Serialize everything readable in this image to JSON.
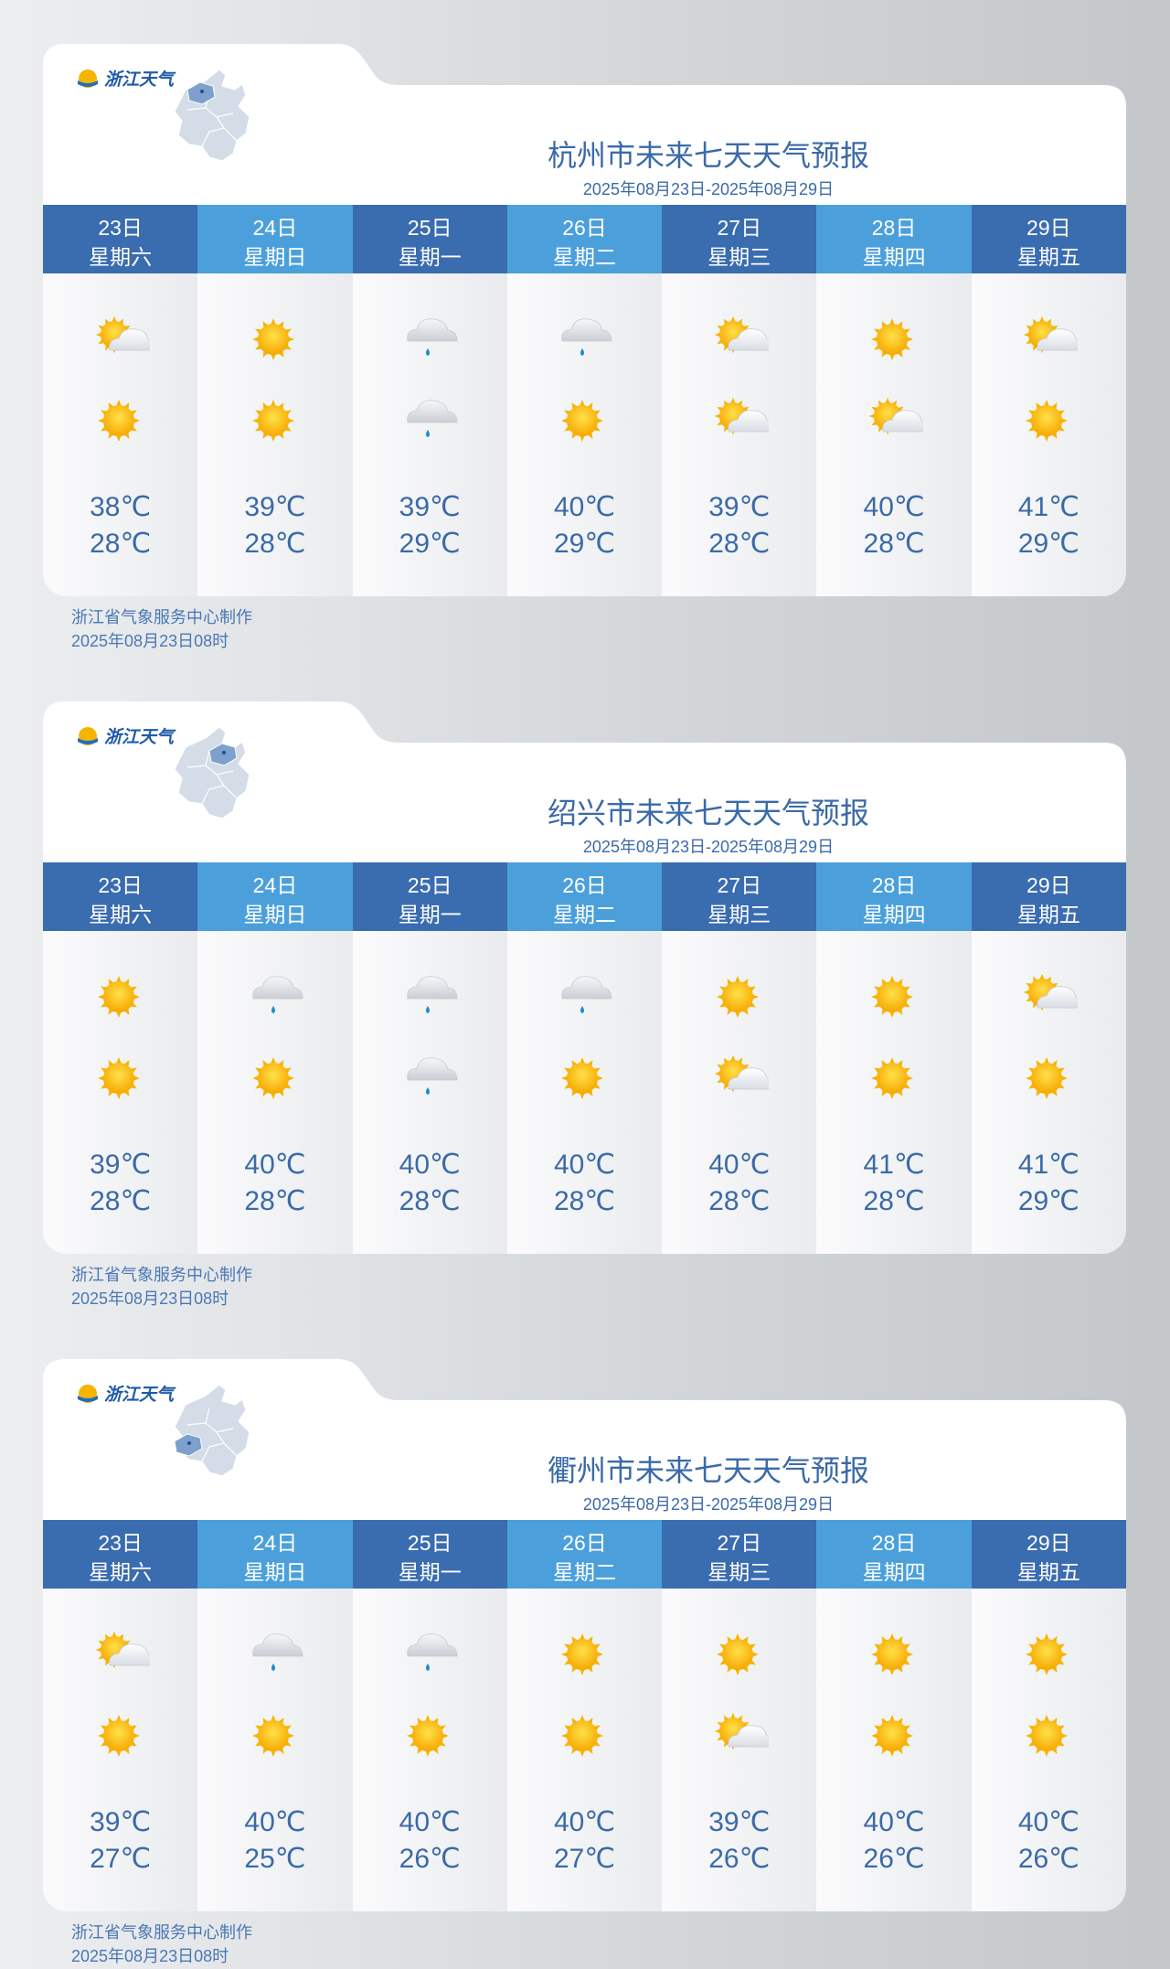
{
  "logo": "浙江天气",
  "panels": [
    {
      "title": "杭州市未来七天天气预报",
      "date_range": "2025年08月23日-2025年08月29日",
      "days": [
        {
          "date": "23日",
          "weekday": "星期六",
          "high": "38℃",
          "low": "28℃"
        },
        {
          "date": "24日",
          "weekday": "星期日",
          "high": "39℃",
          "low": "28℃"
        },
        {
          "date": "25日",
          "weekday": "星期一",
          "high": "39℃",
          "low": "29℃"
        },
        {
          "date": "26日",
          "weekday": "星期二",
          "high": "40℃",
          "low": "29℃"
        },
        {
          "date": "27日",
          "weekday": "星期三",
          "high": "39℃",
          "low": "28℃"
        },
        {
          "date": "28日",
          "weekday": "星期四",
          "high": "40℃",
          "low": "28℃"
        },
        {
          "date": "29日",
          "weekday": "星期五",
          "high": "41℃",
          "low": "29℃"
        }
      ],
      "footer": [
        "浙江省气象服务中心制作",
        "2025年08月23日08时"
      ]
    },
    {
      "title": "绍兴市未来七天天气预报",
      "date_range": "2025年08月23日-2025年08月29日",
      "days": [
        {
          "date": "23日",
          "weekday": "星期六",
          "high": "39℃",
          "low": "28℃"
        },
        {
          "date": "24日",
          "weekday": "星期日",
          "high": "40℃",
          "low": "28℃"
        },
        {
          "date": "25日",
          "weekday": "星期一",
          "high": "40℃",
          "low": "28℃"
        },
        {
          "date": "26日",
          "weekday": "星期二",
          "high": "40℃",
          "low": "28℃"
        },
        {
          "date": "27日",
          "weekday": "星期三",
          "high": "40℃",
          "low": "28℃"
        },
        {
          "date": "28日",
          "weekday": "星期四",
          "high": "41℃",
          "low": "28℃"
        },
        {
          "date": "29日",
          "weekday": "星期五",
          "high": "41℃",
          "low": "29℃"
        }
      ],
      "footer": [
        "浙江省气象服务中心制作",
        "2025年08月23日08时"
      ]
    },
    {
      "title": "衢州市未来七天天气预报",
      "date_range": "2025年08月23日-2025年08月29日",
      "days": [
        {
          "date": "23日",
          "weekday": "星期六",
          "high": "39℃",
          "low": "27℃"
        },
        {
          "date": "24日",
          "weekday": "星期日",
          "high": "40℃",
          "low": "25℃"
        },
        {
          "date": "25日",
          "weekday": "星期一",
          "high": "40℃",
          "low": "26℃"
        },
        {
          "date": "26日",
          "weekday": "星期二",
          "high": "40℃",
          "low": "27℃"
        },
        {
          "date": "27日",
          "weekday": "星期三",
          "high": "39℃",
          "low": "26℃"
        },
        {
          "date": "28日",
          "weekday": "星期四",
          "high": "40℃",
          "low": "26℃"
        },
        {
          "date": "29日",
          "weekday": "星期五",
          "high": "40℃",
          "low": "26℃"
        }
      ],
      "footer": [
        "浙江省气象服务中心制作",
        "2025年08月23日08时"
      ]
    }
  ]
}
